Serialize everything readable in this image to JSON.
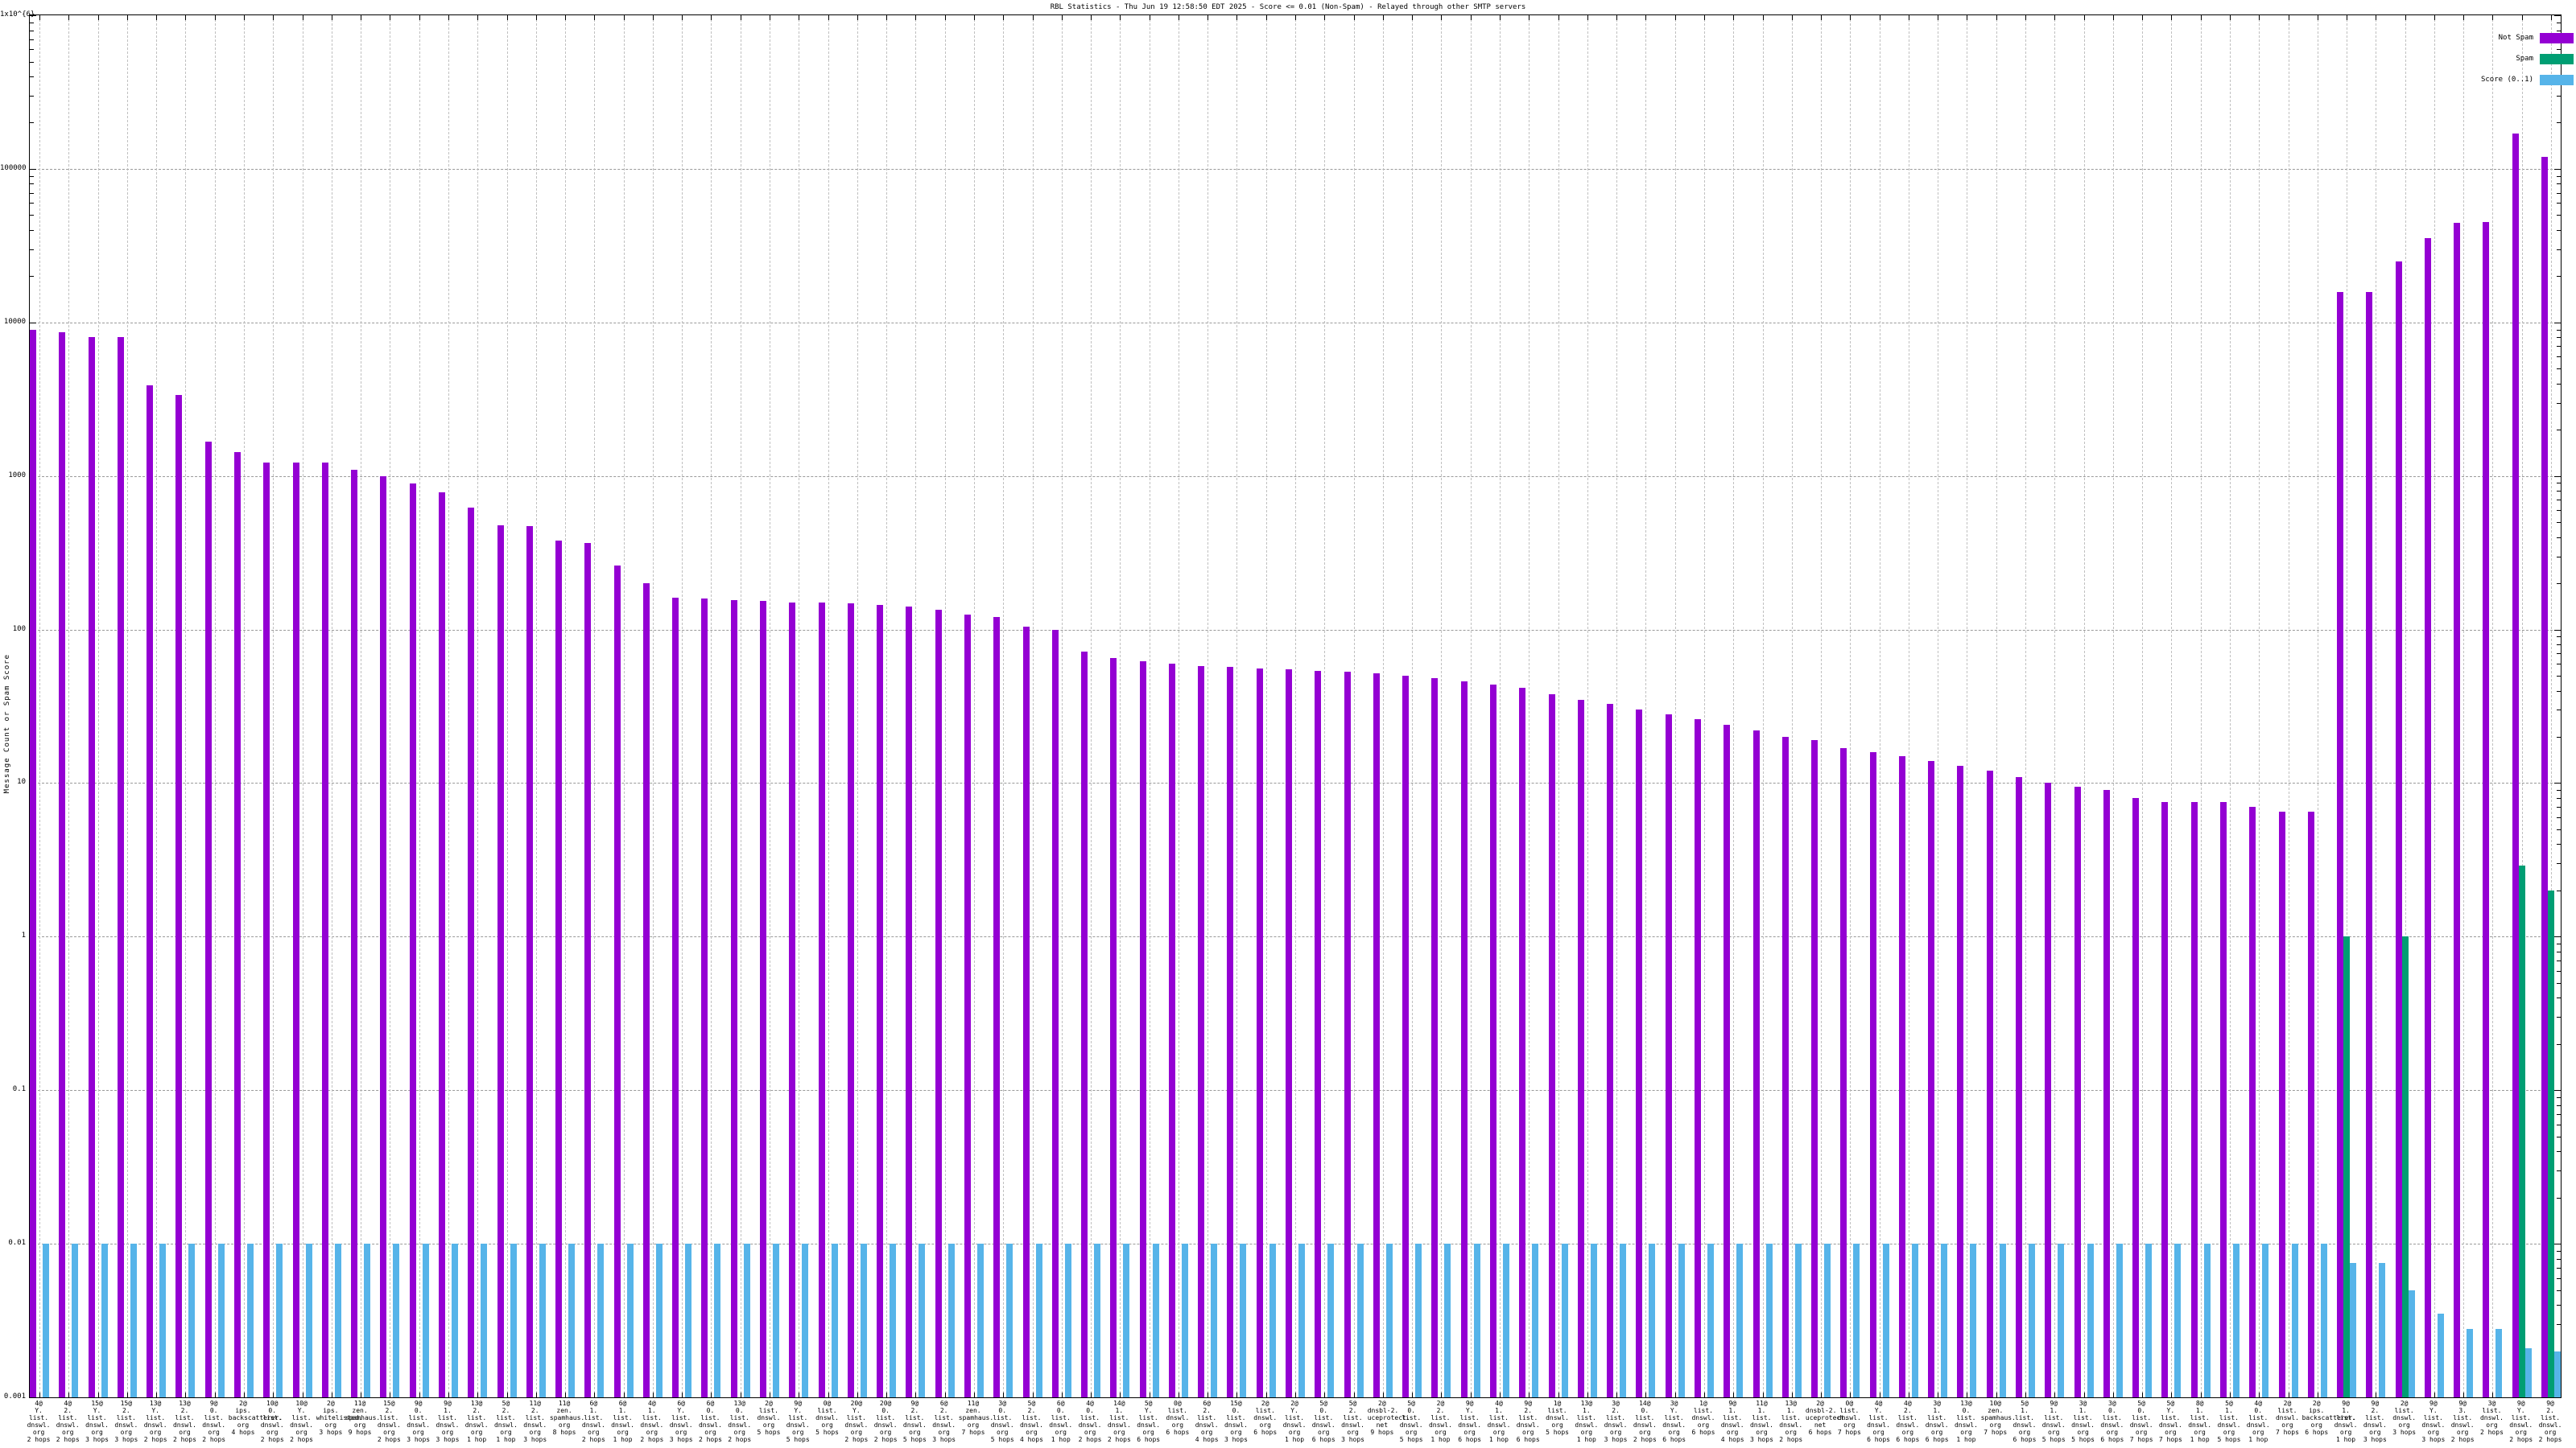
{
  "title": "RBL Statistics - Thu Jun 19 12:58:50 EDT 2025 - Score <= 0.01 (Non-Spam) - Relayed through other SMTP servers",
  "chart_data": {
    "type": "bar",
    "title": "RBL Statistics - Thu Jun 19 12:58:50 EDT 2025 - Score <= 0.01 (Non-Spam) - Relayed through other SMTP servers",
    "ylabel": "Message Count or Spam Score",
    "xlabel": "",
    "y_scale": "log",
    "ylim": [
      0.001,
      1000000
    ],
    "y_tick_labels": [
      "1x10^{6}",
      "100000",
      "10000",
      "1000",
      "100",
      "10",
      "1",
      "0.1",
      "0.01",
      "0.001"
    ],
    "y_tick_values": [
      1000000,
      100000,
      10000,
      1000,
      100,
      10,
      1,
      0.1,
      0.01,
      0.001
    ],
    "grid": true,
    "legend_position": "top-right",
    "bar_colors": {
      "not_spam": "#9400d3",
      "spam": "#009e73",
      "score": "#56b4e9"
    },
    "categories": [
      "4@Y.list.dnswl.org 2 hops",
      "4@2.list.dnswl.org 2 hops",
      "15@Y.list.dnswl.org 3 hops",
      "15@2.list.dnswl.org 3 hops",
      "13@Y.list.dnswl.org 2 hops",
      "13@2.list.dnswl.org 2 hops",
      "9@0.list.dnswl.org 2 hops",
      "2@ips.backscatterer.org 4 hops",
      "10@0.list.dnswl.org 2 hops",
      "10@Y.list.dnswl.org 2 hops",
      "2@ips.whitelisted.org 3 hops",
      "11@zen.spamhaus.org 9 hops",
      "15@2.list.dnswl.org 2 hops",
      "9@0.list.dnswl.org 3 hops",
      "9@1.list.dnswl.org 3 hops",
      "13@2.list.dnswl.org 1 hop",
      "5@2.list.dnswl.org 1 hop",
      "11@2.list.dnswl.org 3 hops",
      "11@zen.spamhaus.org 8 hops",
      "6@1.list.dnswl.org 2 hops",
      "6@1.list.dnswl.org 1 hop",
      "4@1.list.dnswl.org 2 hops",
      "6@Y.list.dnswl.org 3 hops",
      "6@0.list.dnswl.org 2 hops",
      "13@0.list.dnswl.org 2 hops",
      "2@list.dnswl.org 5 hops",
      "9@Y.list.dnswl.org 5 hops",
      "0@list.dnswl.org 5 hops",
      "20@Y.list.dnswl.org 2 hops",
      "20@0.list.dnswl.org 2 hops",
      "9@2.list.dnswl.org 5 hops",
      "6@2.list.dnswl.org 3 hops",
      "11@zen.spamhaus.org 7 hops",
      "3@0.list.dnswl.org 5 hops",
      "5@2.list.dnswl.org 4 hops",
      "6@0.list.dnswl.org 1 hop",
      "4@0.list.dnswl.org 2 hops",
      "14@1.list.dnswl.org 2 hops",
      "5@Y.list.dnswl.org 6 hops",
      "0@list.dnswl.org 6 hops",
      "6@2.list.dnswl.org 4 hops",
      "15@0.list.dnswl.org 3 hops",
      "2@list.dnswl.org 6 hops",
      "2@Y.list.dnswl.org 1 hop",
      "5@0.list.dnswl.org 6 hops",
      "5@2.list.dnswl.org 3 hops",
      "2@dnsbl-2.uceprotect.net 9 hops",
      "5@0.list.dnswl.org 5 hops",
      "2@2.list.dnswl.org 1 hop",
      "9@Y.list.dnswl.org 6 hops",
      "4@1.list.dnswl.org 1 hop",
      "9@2.list.dnswl.org 6 hops",
      "1@list.dnswl.org 5 hops",
      "13@1.list.dnswl.org 1 hop",
      "3@2.list.dnswl.org 3 hops",
      "14@0.list.dnswl.org 2 hops",
      "3@Y.list.dnswl.org 6 hops",
      "1@list.dnswl.org 6 hops",
      "9@1.list.dnswl.org 4 hops",
      "11@1.list.dnswl.org 3 hops",
      "13@1.list.dnswl.org 2 hops",
      "2@dnsbl-2.uceprotect.net 6 hops",
      "0@list.dnswl.org 7 hops",
      "4@Y.list.dnswl.org 6 hops",
      "4@2.list.dnswl.org 6 hops",
      "3@1.list.dnswl.org 6 hops",
      "13@0.list.dnswl.org 1 hop",
      "10@zen.spamhaus.org 7 hops",
      "5@1.list.dnswl.org 6 hops",
      "9@1.list.dnswl.org 5 hops",
      "3@1.list.dnswl.org 5 hops",
      "3@0.list.dnswl.org 6 hops",
      "5@0.list.dnswl.org 7 hops",
      "5@Y.list.dnswl.org 7 hops",
      "8@1.list.dnswl.org 1 hop",
      "5@1.list.dnswl.org 5 hops",
      "4@0.list.dnswl.org 1 hop",
      "2@list.dnswl.org 7 hops",
      "2@ips.backscatterer.org 6 hops",
      "9@1.list.dnswl.org 1 hop",
      "9@2.list.dnswl.org 3 hops",
      "2@list.dnswl.org 3 hops",
      "9@Y.list.dnswl.org 3 hops",
      "9@3.list.dnswl.org 2 hops",
      "3@list.dnswl.org 2 hops",
      "9@Y.list.dnswl.org 2 hops",
      "9@2.list.dnswl.org 2 hops"
    ],
    "series": [
      {
        "name": "Not Spam",
        "color": "#9400d3",
        "values": [
          8900,
          8600,
          8050,
          8000,
          3900,
          3350,
          1670,
          1430,
          1230,
          1225,
          1230,
          1100,
          1000,
          890,
          780,
          620,
          480,
          470,
          380,
          365,
          260,
          200,
          162,
          160,
          155,
          153,
          150,
          150,
          148,
          145,
          142,
          135,
          125,
          120,
          105,
          100,
          72,
          65,
          62,
          60,
          58,
          57,
          56,
          55,
          54,
          53,
          52,
          50,
          48,
          46,
          44,
          42,
          38,
          35,
          33,
          30,
          28,
          26,
          24,
          22,
          20,
          19,
          17,
          16,
          15,
          14,
          13,
          12,
          11,
          10,
          9.5,
          9,
          8,
          7.5,
          7.5,
          7.5,
          7,
          6.5,
          6.5,
          15700,
          15800,
          25000,
          35500,
          44800,
          45300,
          170000,
          120000
        ]
      },
      {
        "name": "Spam",
        "color": "#009e73",
        "values": [
          null,
          null,
          null,
          null,
          null,
          null,
          null,
          null,
          null,
          null,
          null,
          null,
          null,
          null,
          null,
          null,
          null,
          null,
          null,
          null,
          null,
          null,
          null,
          null,
          null,
          null,
          null,
          null,
          null,
          null,
          null,
          null,
          null,
          null,
          null,
          null,
          null,
          null,
          null,
          null,
          null,
          null,
          null,
          null,
          null,
          null,
          null,
          null,
          null,
          null,
          null,
          null,
          null,
          null,
          null,
          null,
          null,
          null,
          null,
          null,
          null,
          null,
          null,
          null,
          null,
          null,
          null,
          null,
          null,
          null,
          null,
          null,
          null,
          null,
          null,
          null,
          null,
          null,
          null,
          1.0,
          null,
          1.0,
          null,
          null,
          null,
          2.9,
          2.0
        ]
      },
      {
        "name": "Score (0..1)",
        "color": "#56b4e9",
        "values": [
          0.01,
          0.01,
          0.01,
          0.01,
          0.01,
          0.01,
          0.01,
          0.01,
          0.01,
          0.01,
          0.01,
          0.01,
          0.01,
          0.01,
          0.01,
          0.01,
          0.01,
          0.01,
          0.01,
          0.01,
          0.01,
          0.01,
          0.01,
          0.01,
          0.01,
          0.01,
          0.01,
          0.01,
          0.01,
          0.01,
          0.01,
          0.01,
          0.01,
          0.01,
          0.01,
          0.01,
          0.01,
          0.01,
          0.01,
          0.01,
          0.01,
          0.01,
          0.01,
          0.01,
          0.01,
          0.01,
          0.01,
          0.01,
          0.01,
          0.01,
          0.01,
          0.01,
          0.01,
          0.01,
          0.01,
          0.01,
          0.01,
          0.01,
          0.01,
          0.01,
          0.01,
          0.01,
          0.01,
          0.01,
          0.01,
          0.01,
          0.01,
          0.01,
          0.01,
          0.01,
          0.01,
          0.01,
          0.01,
          0.01,
          0.01,
          0.01,
          0.01,
          0.01,
          0.01,
          0.0075,
          0.0075,
          0.005,
          0.0035,
          0.0028,
          0.0028,
          0.0021,
          0.002
        ]
      }
    ]
  }
}
